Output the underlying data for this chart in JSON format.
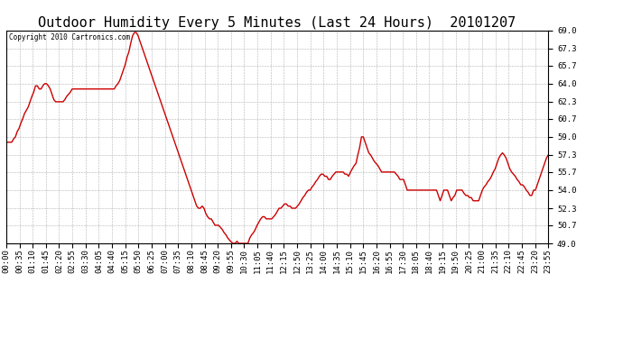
{
  "title": "Outdoor Humidity Every 5 Minutes (Last 24 Hours)  20101207",
  "copyright": "Copyright 2010 Cartronics.com",
  "line_color": "#cc0000",
  "background_color": "#ffffff",
  "plot_bg_color": "#ffffff",
  "grid_color": "#aaaaaa",
  "ylim": [
    49.0,
    69.0
  ],
  "yticks": [
    49.0,
    50.7,
    52.3,
    54.0,
    55.7,
    57.3,
    59.0,
    60.7,
    62.3,
    64.0,
    65.7,
    67.3,
    69.0
  ],
  "title_fontsize": 11,
  "tick_fontsize": 6.5,
  "humidity_values": [
    58.5,
    58.5,
    58.5,
    58.5,
    58.8,
    59.0,
    59.5,
    59.8,
    60.3,
    60.7,
    61.2,
    61.5,
    61.8,
    62.3,
    62.8,
    63.2,
    63.8,
    63.8,
    63.5,
    63.5,
    63.8,
    64.0,
    64.0,
    63.8,
    63.5,
    63.0,
    62.5,
    62.3,
    62.3,
    62.3,
    62.3,
    62.3,
    62.5,
    62.8,
    63.0,
    63.2,
    63.5,
    63.5,
    63.5,
    63.5,
    63.5,
    63.5,
    63.5,
    63.5,
    63.5,
    63.5,
    63.5,
    63.5,
    63.5,
    63.5,
    63.5,
    63.5,
    63.5,
    63.5,
    63.5,
    63.5,
    63.5,
    63.5,
    63.5,
    63.5,
    63.8,
    64.0,
    64.3,
    64.8,
    65.3,
    65.8,
    66.5,
    67.0,
    67.8,
    68.5,
    68.8,
    68.8,
    68.5,
    68.0,
    67.5,
    67.0,
    66.5,
    66.0,
    65.5,
    65.0,
    64.5,
    64.0,
    63.5,
    63.0,
    62.5,
    62.0,
    61.5,
    61.0,
    60.5,
    60.0,
    59.5,
    59.0,
    58.5,
    58.0,
    57.5,
    57.0,
    56.5,
    56.0,
    55.5,
    55.0,
    54.5,
    54.0,
    53.5,
    53.0,
    52.5,
    52.3,
    52.3,
    52.5,
    52.3,
    51.8,
    51.5,
    51.3,
    51.3,
    51.0,
    50.7,
    50.7,
    50.7,
    50.5,
    50.3,
    50.0,
    49.8,
    49.5,
    49.3,
    49.1,
    49.0,
    49.0,
    49.2,
    49.0,
    49.0,
    49.0,
    49.0,
    49.0,
    49.0,
    49.5,
    49.8,
    50.0,
    50.3,
    50.7,
    51.0,
    51.3,
    51.5,
    51.5,
    51.3,
    51.3,
    51.3,
    51.3,
    51.5,
    51.7,
    52.0,
    52.3,
    52.3,
    52.5,
    52.7,
    52.7,
    52.5,
    52.5,
    52.3,
    52.3,
    52.3,
    52.5,
    52.7,
    53.0,
    53.3,
    53.5,
    53.8,
    54.0,
    54.0,
    54.3,
    54.5,
    54.8,
    55.0,
    55.3,
    55.5,
    55.5,
    55.3,
    55.3,
    55.0,
    55.0,
    55.3,
    55.5,
    55.7,
    55.7,
    55.7,
    55.7,
    55.7,
    55.5,
    55.5,
    55.3,
    55.7,
    56.0,
    56.3,
    56.5,
    57.3,
    58.0,
    59.0,
    59.0,
    58.5,
    58.0,
    57.5,
    57.3,
    57.0,
    56.7,
    56.5,
    56.3,
    56.0,
    55.7,
    55.7,
    55.7,
    55.7,
    55.7,
    55.7,
    55.7,
    55.7,
    55.5,
    55.3,
    55.0,
    55.0,
    55.0,
    54.5,
    54.0,
    54.0,
    54.0,
    54.0,
    54.0,
    54.0,
    54.0,
    54.0,
    54.0,
    54.0,
    54.0,
    54.0,
    54.0,
    54.0,
    54.0,
    54.0,
    54.0,
    53.5,
    53.0,
    53.5,
    54.0,
    54.0,
    54.0,
    53.5,
    53.0,
    53.3,
    53.5,
    54.0,
    54.0,
    54.0,
    54.0,
    53.7,
    53.5,
    53.5,
    53.3,
    53.3,
    53.0,
    53.0,
    53.0,
    53.0,
    53.5,
    54.0,
    54.3,
    54.5,
    54.8,
    55.0,
    55.3,
    55.7,
    56.0,
    56.5,
    57.0,
    57.3,
    57.5,
    57.3,
    57.0,
    56.5,
    56.0,
    55.7,
    55.5,
    55.3,
    55.0,
    54.8,
    54.5,
    54.5,
    54.3,
    54.0,
    53.8,
    53.5,
    53.5,
    54.0,
    54.0,
    54.5,
    55.0,
    55.5,
    56.0,
    56.5,
    57.0,
    57.3
  ]
}
